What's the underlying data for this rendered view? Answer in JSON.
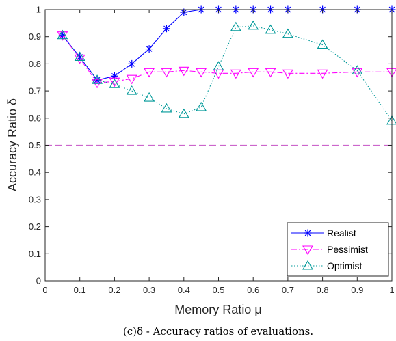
{
  "chart_data": {
    "type": "line",
    "caption": "(c)δ - Accuracy ratios of evaluations.",
    "xlabel": "Memory Ratio μ",
    "ylabel": "Accuracy Ratio δ",
    "xlim": [
      0,
      1
    ],
    "ylim": [
      0,
      1
    ],
    "xticks": [
      "0",
      "0.1",
      "0.2",
      "0.3",
      "0.4",
      "0.5",
      "0.6",
      "0.7",
      "0.8",
      "0.9",
      "1"
    ],
    "yticks": [
      "0",
      "0.1",
      "0.2",
      "0.3",
      "0.4",
      "0.5",
      "0.6",
      "0.7",
      "0.8",
      "0.9",
      "1"
    ],
    "grid": false,
    "legend_position": "bottom-right",
    "reference_line": {
      "y": 0.5,
      "color": "#cc66cc",
      "style": "dashed"
    },
    "series": [
      {
        "name": "Realist",
        "color": "#0000ff",
        "marker": "asterisk",
        "linestyle": "solid",
        "x": [
          0.05,
          0.1,
          0.15,
          0.2,
          0.25,
          0.3,
          0.35,
          0.4,
          0.45,
          0.5,
          0.55,
          0.6,
          0.65,
          0.7,
          0.8,
          0.9,
          1.0
        ],
        "y": [
          0.905,
          0.825,
          0.74,
          0.755,
          0.8,
          0.855,
          0.93,
          0.99,
          1.0,
          1.0,
          1.0,
          1.0,
          1.0,
          1.0,
          1.0,
          1.0,
          1.0
        ]
      },
      {
        "name": "Pessimist",
        "color": "#ff00ff",
        "marker": "triangle-down",
        "linestyle": "dashdot",
        "x": [
          0.05,
          0.1,
          0.15,
          0.2,
          0.25,
          0.3,
          0.35,
          0.4,
          0.45,
          0.5,
          0.55,
          0.6,
          0.65,
          0.7,
          0.8,
          0.9,
          1.0
        ],
        "y": [
          0.905,
          0.82,
          0.73,
          0.735,
          0.745,
          0.77,
          0.77,
          0.775,
          0.77,
          0.765,
          0.765,
          0.77,
          0.77,
          0.765,
          0.765,
          0.77,
          0.77
        ]
      },
      {
        "name": "Optimist",
        "color": "#009999",
        "marker": "triangle-up",
        "linestyle": "dotted",
        "x": [
          0.05,
          0.1,
          0.15,
          0.2,
          0.25,
          0.3,
          0.35,
          0.4,
          0.45,
          0.5,
          0.55,
          0.6,
          0.65,
          0.7,
          0.8,
          0.9,
          1.0
        ],
        "y": [
          0.905,
          0.825,
          0.74,
          0.725,
          0.7,
          0.675,
          0.635,
          0.615,
          0.64,
          0.79,
          0.935,
          0.94,
          0.925,
          0.91,
          0.87,
          0.775,
          0.59
        ]
      }
    ]
  }
}
